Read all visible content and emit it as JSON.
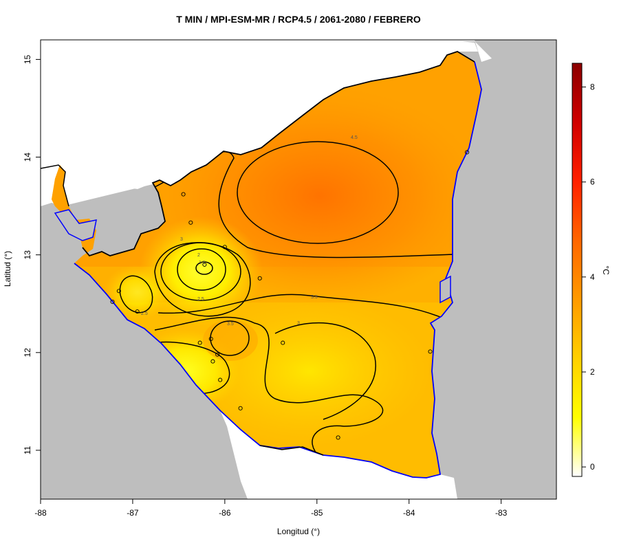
{
  "title": "T MIN / MPI-ESM-MR / RCP4.5 / 2061-2080 / FEBRERO",
  "xlabel": "Longitud (°)",
  "ylabel": "Latitud (°)",
  "unit": "°C",
  "x_ticks": [
    "-88",
    "-87",
    "-86",
    "-85",
    "-84",
    "-83"
  ],
  "y_ticks": [
    "11",
    "12",
    "13",
    "14",
    "15"
  ],
  "colorbar": {
    "ticks": [
      "0",
      "2",
      "4",
      "6",
      "8"
    ],
    "min": -0.2,
    "max": 8.5,
    "colors": [
      "#ffffff",
      "#ffff00",
      "#ffd000",
      "#ff9a00",
      "#ff6600",
      "#ff2000",
      "#d00000",
      "#8b0000"
    ]
  },
  "colors": {
    "ocean": "#bebebe",
    "coastline": "#0000ff",
    "border": "#000000",
    "contour": "#000000"
  },
  "contour_labels": [
    "4.5",
    "3",
    "2",
    "1.5",
    "2.5",
    "3.5",
    "3.5",
    "3",
    "2.5"
  ],
  "chart_data": {
    "type": "heatmap",
    "title": "T MIN / MPI-ESM-MR / RCP4.5 / 2061-2080 / FEBRERO",
    "xlabel": "Longitud (°)",
    "ylabel": "Latitud (°)",
    "xlim": [
      -88,
      -82.4
    ],
    "ylim": [
      10.5,
      15.2
    ],
    "colorbar_range": [
      -0.2,
      8.5
    ],
    "contour_levels": [
      1.5,
      2,
      2.5,
      3,
      3.5,
      4.5
    ],
    "stations": [
      {
        "lon": -86.45,
        "lat": 13.62
      },
      {
        "lon": -86.37,
        "lat": 13.33
      },
      {
        "lon": -86.0,
        "lat": 13.08
      },
      {
        "lon": -86.22,
        "lat": 12.9
      },
      {
        "lon": -85.62,
        "lat": 12.76
      },
      {
        "lon": -87.15,
        "lat": 12.63
      },
      {
        "lon": -87.22,
        "lat": 12.52
      },
      {
        "lon": -86.95,
        "lat": 12.42
      },
      {
        "lon": -86.27,
        "lat": 12.1
      },
      {
        "lon": -86.15,
        "lat": 12.14
      },
      {
        "lon": -86.08,
        "lat": 11.98
      },
      {
        "lon": -86.13,
        "lat": 11.91
      },
      {
        "lon": -86.05,
        "lat": 11.72
      },
      {
        "lon": -85.83,
        "lat": 11.43
      },
      {
        "lon": -85.37,
        "lat": 12.1
      },
      {
        "lon": -84.77,
        "lat": 11.13
      },
      {
        "lon": -83.77,
        "lat": 12.01
      },
      {
        "lon": -83.37,
        "lat": 14.05
      }
    ]
  }
}
